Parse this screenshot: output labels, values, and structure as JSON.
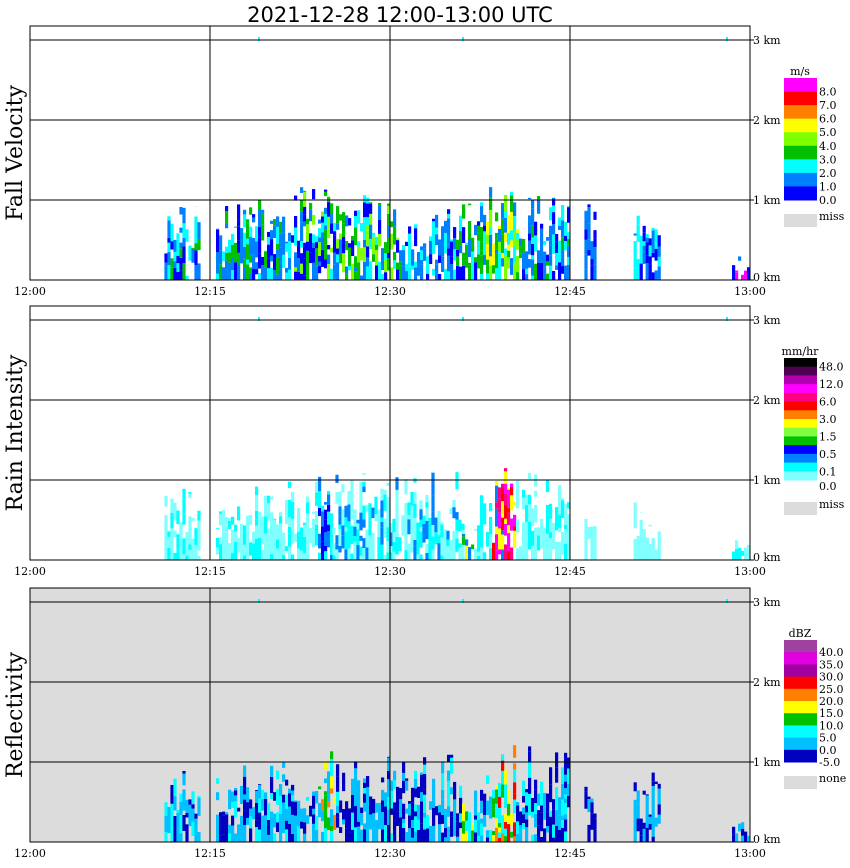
{
  "title": "2021-12-28   12:00-13:00 UTC",
  "chart_data": [
    {
      "type": "heatmap",
      "title": "Fall Velocity",
      "ylabel": "Fall Velocity",
      "xlim": [
        0,
        60
      ],
      "ylim": [
        0,
        3.2
      ],
      "x_ticks": [
        {
          "v": 0,
          "label": "12:00"
        },
        {
          "v": 15,
          "label": "12:15"
        },
        {
          "v": 30,
          "label": "12:30"
        },
        {
          "v": 45,
          "label": "12:45"
        },
        {
          "v": 60,
          "label": "13:00"
        }
      ],
      "y_ticks": [
        {
          "v": 0,
          "label": "0 km"
        },
        {
          "v": 1,
          "label": "1 km"
        },
        {
          "v": 2,
          "label": "2 km"
        },
        {
          "v": 3,
          "label": "3 km"
        }
      ],
      "background": "#ffffff",
      "colorbar": {
        "unit": "m/s",
        "colors": [
          "#ff00ff",
          "#ff0000",
          "#ff8000",
          "#ffff00",
          "#80ff00",
          "#00c000",
          "#00ffff",
          "#0080ff",
          "#0000ff"
        ],
        "labels": [
          "8.0",
          "7.0",
          "6.0",
          "5.0",
          "4.0",
          "3.0",
          "2.0",
          "1.0",
          "0.0"
        ],
        "missing_label": "miss",
        "missing_color": "#dcdcdc"
      },
      "echoes": [
        {
          "t0": 11.2,
          "t1": 14.2,
          "top": 0.95,
          "c": [
            7,
            8,
            6,
            5
          ]
        },
        {
          "t0": 15.5,
          "t1": 22,
          "top": 1.0,
          "c": [
            7,
            8,
            6,
            7,
            5
          ]
        },
        {
          "t0": 22,
          "t1": 25.5,
          "top": 1.25,
          "c": [
            7,
            6,
            5,
            8,
            4
          ]
        },
        {
          "t0": 25.5,
          "t1": 31,
          "top": 1.1,
          "c": [
            7,
            8,
            6,
            5,
            4
          ]
        },
        {
          "t0": 31,
          "t1": 35.5,
          "top": 0.9,
          "c": [
            7,
            8,
            6
          ]
        },
        {
          "t0": 35.5,
          "t1": 38,
          "top": 1.05,
          "c": [
            7,
            8,
            6,
            5
          ]
        },
        {
          "t0": 38,
          "t1": 41,
          "top": 1.3,
          "c": [
            4,
            3,
            5,
            7,
            6
          ]
        },
        {
          "t0": 41,
          "t1": 44.8,
          "top": 1.2,
          "c": [
            7,
            8,
            6,
            5
          ]
        },
        {
          "t0": 46.2,
          "t1": 47,
          "top": 0.95,
          "c": [
            8,
            7
          ]
        },
        {
          "t0": 50.3,
          "t1": 52.5,
          "top": 0.95,
          "c": [
            8,
            7,
            6
          ]
        },
        {
          "t0": 58.5,
          "t1": 60,
          "top": 0.3,
          "c": [
            8,
            0,
            7
          ]
        }
      ]
    },
    {
      "type": "heatmap",
      "title": "Rain Intensity",
      "ylabel": "Rain Intensity",
      "xlim": [
        0,
        60
      ],
      "ylim": [
        0,
        3.2
      ],
      "x_ticks": [
        {
          "v": 0,
          "label": "12:00"
        },
        {
          "v": 15,
          "label": "12:15"
        },
        {
          "v": 30,
          "label": "12:30"
        },
        {
          "v": 45,
          "label": "12:45"
        },
        {
          "v": 60,
          "label": "13:00"
        }
      ],
      "y_ticks": [
        {
          "v": 0,
          "label": "0 km"
        },
        {
          "v": 1,
          "label": "1 km"
        },
        {
          "v": 2,
          "label": "2 km"
        },
        {
          "v": 3,
          "label": "3 km"
        }
      ],
      "background": "#ffffff",
      "colorbar": {
        "unit": "mm/hr",
        "colors": [
          "#000000",
          "#500050",
          "#b000b0",
          "#ff00ff",
          "#ff0080",
          "#ff0000",
          "#ff8000",
          "#ffff00",
          "#80ff40",
          "#00c000",
          "#0000ff",
          "#0080ff",
          "#00ffff",
          "#80ffff"
        ],
        "labels": [
          "48.0",
          "12.0",
          "6.0",
          "3.0",
          "1.5",
          "0.5",
          "0.1",
          "0.0"
        ],
        "missing_label": "miss",
        "missing_color": "#dcdcdc"
      },
      "echoes": [
        {
          "t0": 11.2,
          "t1": 14.2,
          "top": 0.95,
          "c": [
            13,
            13,
            12
          ]
        },
        {
          "t0": 15.5,
          "t1": 24,
          "top": 1.0,
          "c": [
            13,
            13,
            12
          ]
        },
        {
          "t0": 24,
          "t1": 25.2,
          "top": 1.2,
          "c": [
            10,
            11,
            12
          ]
        },
        {
          "t0": 25.2,
          "t1": 36,
          "top": 1.1,
          "c": [
            13,
            12,
            13,
            11
          ]
        },
        {
          "t0": 36,
          "t1": 37,
          "top": 0.5,
          "c": [
            9,
            7,
            11
          ]
        },
        {
          "t0": 37,
          "t1": 38.5,
          "top": 0.9,
          "c": [
            13,
            12
          ]
        },
        {
          "t0": 38.5,
          "t1": 40.5,
          "top": 1.25,
          "c": [
            4,
            5,
            7,
            3,
            11
          ]
        },
        {
          "t0": 40.5,
          "t1": 44.8,
          "top": 1.1,
          "c": [
            13,
            12,
            13
          ]
        },
        {
          "t0": 46.2,
          "t1": 47,
          "top": 0.9,
          "c": [
            13
          ]
        },
        {
          "t0": 50.3,
          "t1": 52.5,
          "top": 0.8,
          "c": [
            13,
            13
          ]
        },
        {
          "t0": 58.5,
          "t1": 60,
          "top": 0.25,
          "c": [
            13,
            12
          ]
        }
      ]
    },
    {
      "type": "heatmap",
      "title": "Reflectivity",
      "ylabel": "Reflectivity",
      "xlim": [
        0,
        60
      ],
      "ylim": [
        0,
        3.2
      ],
      "x_ticks": [
        {
          "v": 0,
          "label": "12:00"
        },
        {
          "v": 15,
          "label": "12:15"
        },
        {
          "v": 30,
          "label": "12:30"
        },
        {
          "v": 45,
          "label": "12:45"
        },
        {
          "v": 60,
          "label": "13:00"
        }
      ],
      "y_ticks": [
        {
          "v": 0,
          "label": "0 km"
        },
        {
          "v": 1,
          "label": "1 km"
        },
        {
          "v": 2,
          "label": "2 km"
        },
        {
          "v": 3,
          "label": "3 km"
        }
      ],
      "background": "#dcdcdc",
      "colorbar": {
        "unit": "dBZ",
        "colors": [
          "#a040a0",
          "#e000e0",
          "#a000a0",
          "#ff0000",
          "#ff8000",
          "#ffff00",
          "#00c000",
          "#00ffff",
          "#00c0ff",
          "#0000c0"
        ],
        "labels": [
          "40.0",
          "35.0",
          "30.0",
          "25.0",
          "20.0",
          "15.0",
          "10.0",
          "5.0",
          "0.0",
          "-5.0"
        ],
        "missing_label": "none",
        "missing_color": "#dcdcdc"
      },
      "echoes": [
        {
          "t0": 11.2,
          "t1": 14.2,
          "top": 0.95,
          "c": [
            9,
            8,
            7,
            8
          ]
        },
        {
          "t0": 15.5,
          "t1": 24,
          "top": 1.0,
          "c": [
            9,
            8,
            7,
            8,
            9
          ]
        },
        {
          "t0": 24,
          "t1": 25.5,
          "top": 1.2,
          "c": [
            6,
            5,
            7,
            4,
            8
          ]
        },
        {
          "t0": 25.5,
          "t1": 36,
          "top": 1.1,
          "c": [
            9,
            8,
            7,
            9,
            8
          ]
        },
        {
          "t0": 36,
          "t1": 37,
          "top": 0.5,
          "c": [
            6,
            5,
            7
          ]
        },
        {
          "t0": 37,
          "t1": 38.5,
          "top": 0.95,
          "c": [
            9,
            8,
            7
          ]
        },
        {
          "t0": 38.5,
          "t1": 40.5,
          "top": 1.25,
          "c": [
            3,
            4,
            5,
            6,
            7
          ]
        },
        {
          "t0": 40.5,
          "t1": 44.8,
          "top": 1.2,
          "c": [
            9,
            8,
            7,
            9
          ]
        },
        {
          "t0": 46.2,
          "t1": 47,
          "top": 0.95,
          "c": [
            9,
            8
          ]
        },
        {
          "t0": 50.3,
          "t1": 52.5,
          "top": 0.95,
          "c": [
            9,
            8
          ]
        },
        {
          "t0": 58.5,
          "t1": 60,
          "top": 0.25,
          "c": [
            9,
            8
          ]
        }
      ]
    }
  ]
}
